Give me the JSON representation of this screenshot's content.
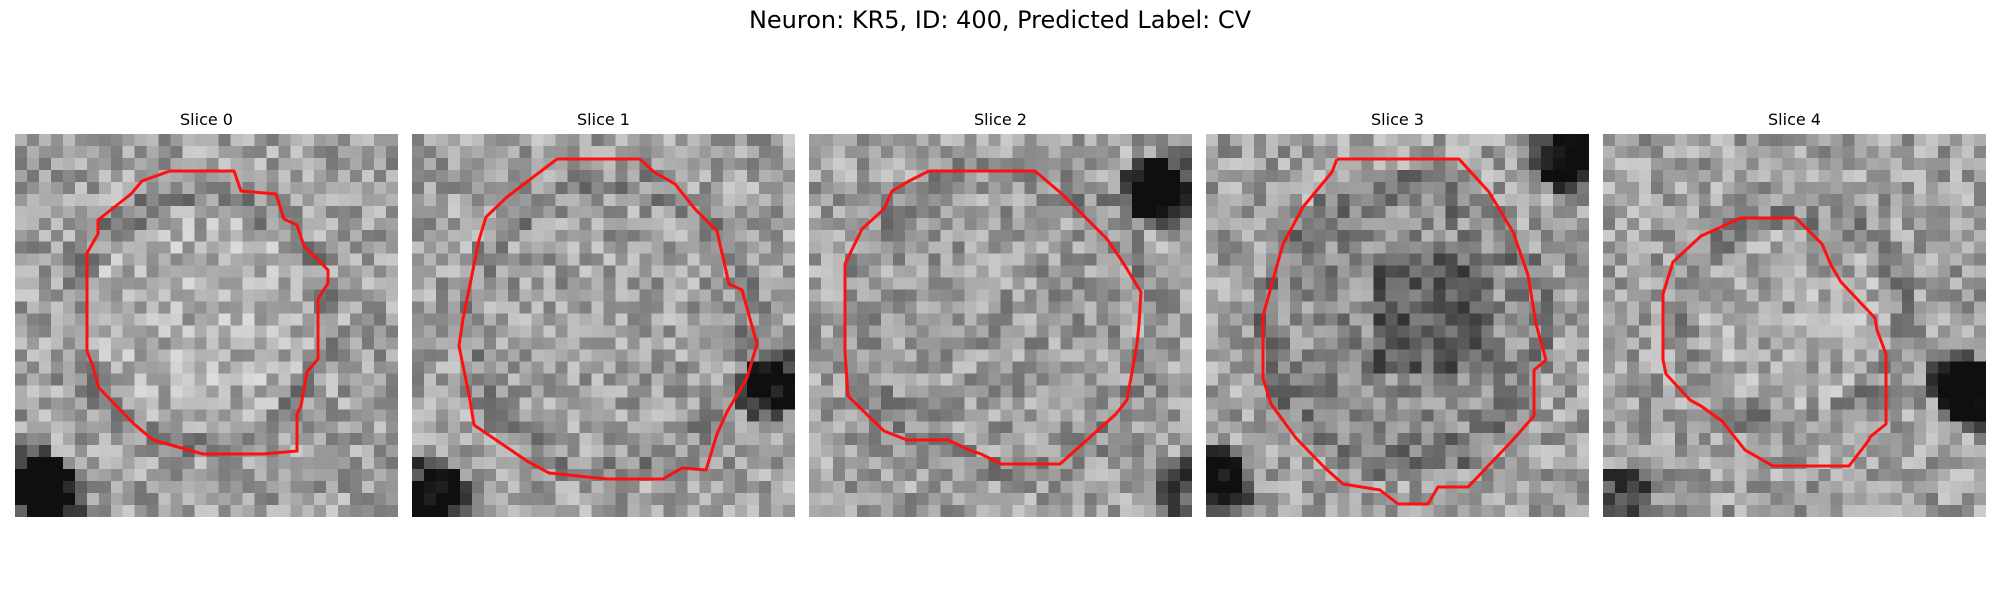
{
  "figure": {
    "title": "Neuron: KR5, ID: 400, Predicted Label: CV"
  },
  "panels": [
    {
      "title": "Slice 0"
    },
    {
      "title": "Slice 1"
    },
    {
      "title": "Slice 2"
    },
    {
      "title": "Slice 3"
    },
    {
      "title": "Slice 4"
    }
  ],
  "colors": {
    "contour": "#ff1010",
    "background": "#ffffff"
  }
}
